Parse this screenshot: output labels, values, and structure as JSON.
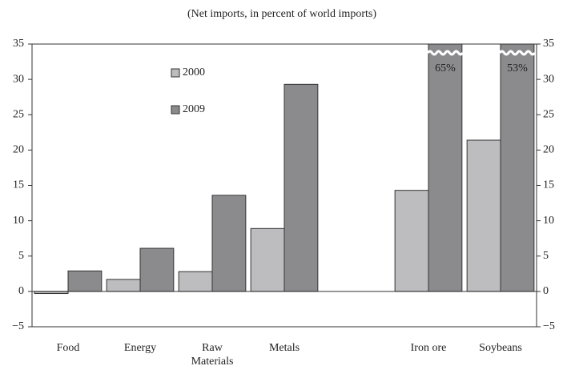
{
  "chart_data": {
    "type": "bar",
    "subtitle": "(Net imports, in percent of world imports)",
    "categories": [
      "Food",
      "Energy",
      "Raw Materials",
      "Metals",
      null,
      "Iron ore",
      "Soybeans"
    ],
    "series": [
      {
        "name": "2000",
        "color": "#bdbdc0",
        "values": [
          -0.3,
          1.7,
          2.8,
          8.9,
          null,
          14.3,
          21.4
        ]
      },
      {
        "name": "2009",
        "color": "#8b8b8e",
        "values": [
          2.9,
          6.1,
          13.6,
          29.3,
          null,
          65,
          53
        ],
        "value_labels": [
          null,
          null,
          null,
          null,
          null,
          "65%",
          "53%"
        ]
      }
    ],
    "ylim": [
      -5,
      35
    ],
    "yticks": [
      {
        "value": -5,
        "label": "−5"
      },
      0,
      5,
      10,
      15,
      20,
      25,
      30,
      35
    ]
  }
}
